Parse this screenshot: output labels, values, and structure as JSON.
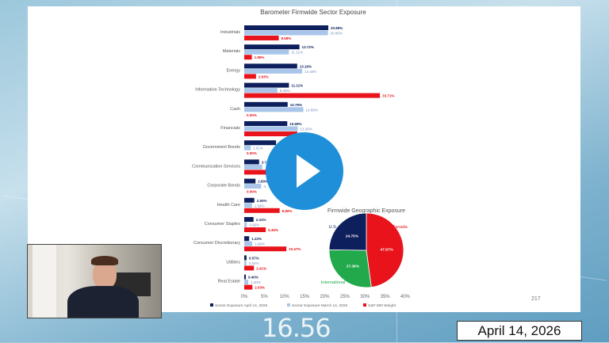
{
  "background": {
    "ticker_text": "16.56"
  },
  "date_banner": "April 14, 2026",
  "slide": {
    "page_number": "217"
  },
  "player": {
    "play_icon": "play-icon"
  },
  "colors": {
    "april": "#0d1f5c",
    "march": "#a9c6ea",
    "sp500": "#e8131b",
    "green": "#22a94b"
  },
  "chart_data": [
    {
      "type": "bar",
      "orientation": "horizontal",
      "title": "Barometer Firmwide Sector Exposure",
      "categories": [
        "Industrials",
        "Materials",
        "Energy",
        "Information Technology",
        "Cash",
        "Financials",
        "Government Bonds",
        "Communication Services",
        "Corporate Bonds",
        "Health Care",
        "Consumer Staples",
        "Consumer Discretionary",
        "Utilities",
        "Real Estate"
      ],
      "series": [
        {
          "name": "Sector Exposure April 14, 2026",
          "values": [
            20.89,
            13.72,
            13.16,
            11.11,
            10.79,
            10.69,
            7.9,
            3.7,
            2.8,
            2.5,
            2.31,
            1.22,
            0.57,
            0.4
          ],
          "labels": [
            "20.89%",
            "13.72%",
            "13.16%",
            "11.11%",
            "10.79%",
            "10.69%",
            "",
            "3.7",
            "2.80%",
            "2.50%",
            "2.31%",
            "1.22%",
            "0.57%",
            "0.40%"
          ]
        },
        {
          "name": "Sector Exposure March 14, 2026",
          "values": [
            20.8,
            11.11,
            14.4,
            8.25,
            14.69,
            13.3,
            1.61,
            4.5,
            4.2,
            1.93,
            0.66,
            1.99,
            0.54,
            1.0
          ],
          "labels": [
            "20.80%",
            "11.11%",
            "14.40%",
            "8.25%",
            "14.69%",
            "13.30%",
            "1.61%",
            "",
            "4.",
            "1.93%",
            "0.66%",
            "1.99%",
            "0.54%",
            "1.00%"
          ]
        },
        {
          "name": "S&P 500 Weight",
          "values": [
            8.58,
            1.89,
            2.93,
            33.71,
            0.0,
            13.18,
            0.0,
            9.9,
            0.0,
            8.8,
            5.35,
            10.47,
            2.41,
            2.03
          ],
          "labels": [
            "8.58%",
            "1.89%",
            "2.93%",
            "33.71%",
            "0.00%",
            "13.18%",
            "0.00%",
            "",
            "0.00%",
            "8.80%",
            "5.35%",
            "10.47%",
            "2.41%",
            "2.03%"
          ]
        }
      ],
      "xlim": [
        0,
        40
      ],
      "xticks": [
        "0%",
        "5%",
        "10%",
        "15%",
        "20%",
        "25%",
        "30%",
        "35%",
        "40%"
      ],
      "grid": false,
      "legend": "bottom"
    },
    {
      "type": "pie",
      "title": "Firmwide Geographic Exposure",
      "slices": [
        {
          "name": "Canada",
          "value": 47.87,
          "label": "47.87%",
          "color": "#e8131b"
        },
        {
          "name": "International",
          "value": 27.38,
          "label": "27.38%",
          "color": "#22a94b"
        },
        {
          "name": "U.S.",
          "value": 24.75,
          "label": "24.75%",
          "color": "#0d1f5c"
        }
      ]
    }
  ]
}
